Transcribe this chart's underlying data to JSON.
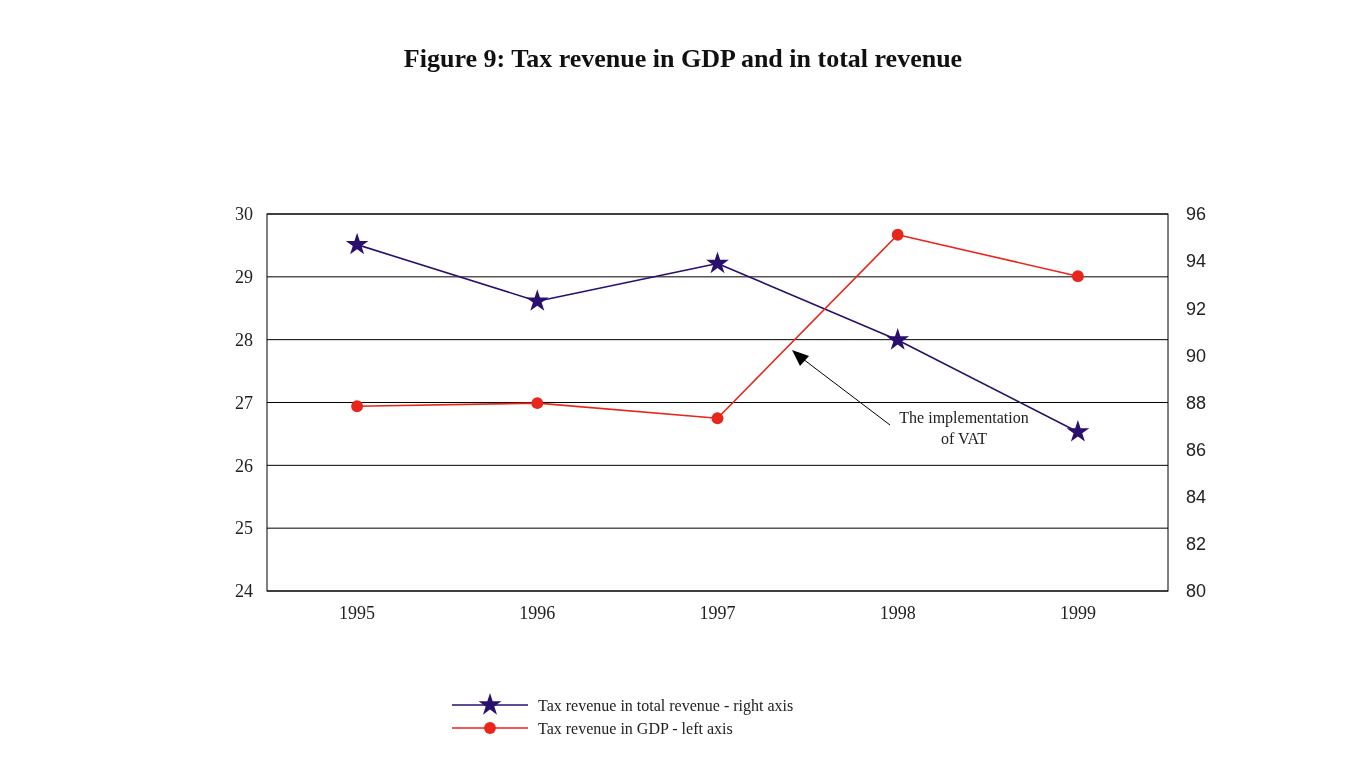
{
  "chart_data": {
    "type": "line",
    "title": "Figure 9: Tax revenue in GDP and in total revenue",
    "categories": [
      "1995",
      "1996",
      "1997",
      "1998",
      "1999"
    ],
    "series": [
      {
        "name": "Tax revenue in total revenue - right axis",
        "color": "#2a0f6e",
        "values": [
          94.7,
          92.3,
          93.9,
          90.65,
          86.75
        ],
        "axis": "y2",
        "marker": "star"
      },
      {
        "name": "Tax revenue in GDP - left axis",
        "color": "#e8261b",
        "values": [
          26.94,
          26.99,
          26.75,
          29.67,
          29.01
        ],
        "marker": "circle"
      }
    ],
    "ylim": [
      24,
      30
    ],
    "yticks": [
      24,
      25,
      26,
      27,
      28,
      29,
      30
    ],
    "y2lim": [
      80,
      96
    ],
    "y2ticks": [
      80,
      82,
      84,
      86,
      88,
      90,
      92,
      94,
      96
    ],
    "grid": "y",
    "legend": "bottom",
    "line_style": "solid",
    "annotations": [
      "The implementation\nof VAT"
    ]
  }
}
